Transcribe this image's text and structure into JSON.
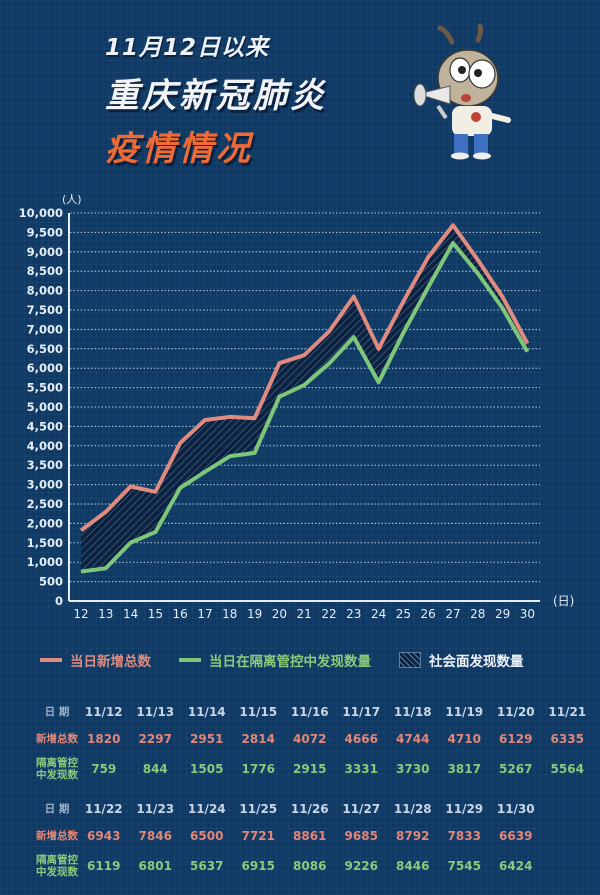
{
  "header": {
    "line1": "11月12日以来",
    "line2": "重庆新冠肺炎",
    "line3": "疫情情况"
  },
  "mascot": {
    "icon": "megaphone-mascot-icon"
  },
  "colors": {
    "background": "#0f3a66",
    "total_line": "#e08b80",
    "isolation_line": "#7ec77a",
    "title_accent": "#ee6a36"
  },
  "chart_data": {
    "type": "line",
    "title": "11月12日以来重庆新冠肺炎疫情情况",
    "xlabel": "(日)",
    "ylabel": "(人)",
    "ylim": [
      0,
      10000
    ],
    "yticks": [
      "0",
      "500",
      "1,000",
      "1,500",
      "2,000",
      "2,500",
      "3,000",
      "3,500",
      "4,000",
      "4,500",
      "5,000",
      "5,500",
      "6,000",
      "6,500",
      "7,000",
      "7,500",
      "8,000",
      "8,500",
      "9,000",
      "9,500",
      "10,000"
    ],
    "categories": [
      "12",
      "13",
      "14",
      "15",
      "16",
      "17",
      "18",
      "19",
      "20",
      "21",
      "22",
      "23",
      "24",
      "25",
      "26",
      "27",
      "28",
      "29",
      "30"
    ],
    "series": [
      {
        "name": "当日新增总数",
        "color": "#e08b80",
        "values": [
          1820,
          2297,
          2951,
          2814,
          4072,
          4666,
          4744,
          4710,
          6129,
          6335,
          6943,
          7846,
          6500,
          7721,
          8861,
          9685,
          8792,
          7833,
          6639
        ]
      },
      {
        "name": "当日在隔离管控中发现数量",
        "color": "#7ec77a",
        "values": [
          759,
          844,
          1505,
          1776,
          2915,
          3331,
          3730,
          3817,
          5267,
          5564,
          6119,
          6801,
          5637,
          6915,
          8086,
          9226,
          8446,
          7545,
          6424
        ]
      }
    ],
    "area": {
      "name": "社会面发现数量",
      "pattern": "hatched",
      "between": [
        "当日新增总数",
        "当日在隔离管控中发现数量"
      ]
    },
    "grid": true,
    "legend_position": "bottom"
  },
  "legend": {
    "total": "当日新增总数",
    "isolation": "当日在隔离管控中发现数量",
    "community": "社会面发现数量"
  },
  "table": {
    "date_label": "日 期",
    "total_label": "新增总数",
    "iso_label_1": "隔离管控",
    "iso_label_2": "中发现数",
    "blocks": [
      {
        "dates": [
          "11/12",
          "11/13",
          "11/14",
          "11/15",
          "11/16",
          "11/17",
          "11/18",
          "11/19",
          "11/20",
          "11/21"
        ],
        "totals": [
          "1820",
          "2297",
          "2951",
          "2814",
          "4072",
          "4666",
          "4744",
          "4710",
          "6129",
          "6335"
        ],
        "isolation": [
          "759",
          "844",
          "1505",
          "1776",
          "2915",
          "3331",
          "3730",
          "3817",
          "5267",
          "5564"
        ]
      },
      {
        "dates": [
          "11/22",
          "11/23",
          "11/24",
          "11/25",
          "11/26",
          "11/27",
          "11/28",
          "11/29",
          "11/30"
        ],
        "totals": [
          "6943",
          "7846",
          "6500",
          "7721",
          "8861",
          "9685",
          "8792",
          "7833",
          "6639"
        ],
        "isolation": [
          "6119",
          "6801",
          "5637",
          "6915",
          "8086",
          "9226",
          "8446",
          "7545",
          "6424"
        ]
      }
    ]
  }
}
